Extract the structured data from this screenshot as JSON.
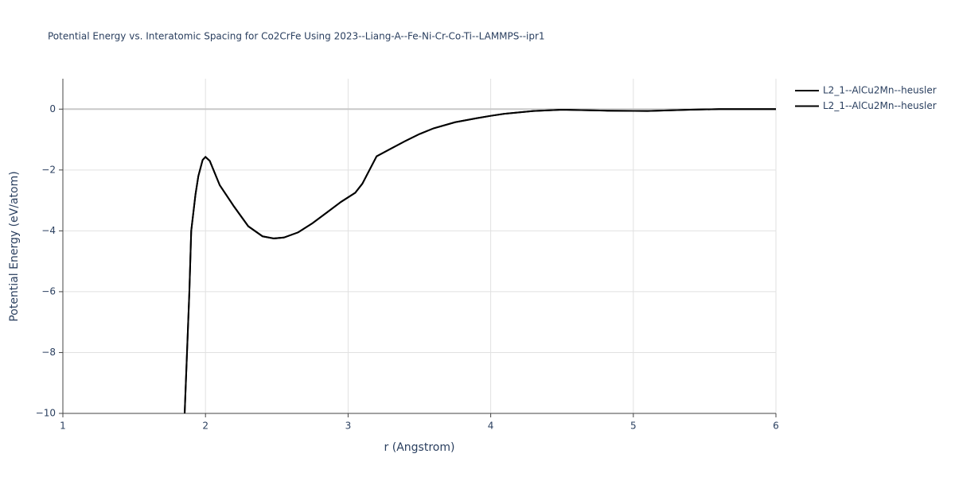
{
  "chart_data": {
    "type": "line",
    "title": "Potential Energy vs. Interatomic Spacing for Co2CrFe Using 2023--Liang-A--Fe-Ni-Cr-Co-Ti--LAMMPS--ipr1",
    "x_label": "r (Angstrom)",
    "y_label": "Potential Energy (eV/atom)",
    "x": [
      1.854,
      1.887,
      1.9,
      1.93,
      1.95,
      1.98,
      2.0,
      2.03,
      2.1,
      2.2,
      2.3,
      2.4,
      2.48,
      2.55,
      2.65,
      2.75,
      2.85,
      2.95,
      3.05,
      3.1,
      3.15,
      3.2,
      3.3,
      3.4,
      3.5,
      3.6,
      3.75,
      3.9,
      4.0,
      4.1,
      4.3,
      4.5,
      4.8,
      5.1,
      5.4,
      5.6,
      6.0
    ],
    "series": [
      {
        "name": "L2_1--AlCu2Mn--heusler",
        "color": "#000000",
        "values": [
          -10,
          -6,
          -4,
          -2.8,
          -2.2,
          -1.67,
          -1.57,
          -1.7,
          -2.5,
          -3.2,
          -3.85,
          -4.18,
          -4.25,
          -4.22,
          -4.05,
          -3.75,
          -3.4,
          -3.05,
          -2.75,
          -2.45,
          -2.0,
          -1.55,
          -1.3,
          -1.05,
          -0.82,
          -0.63,
          -0.43,
          -0.3,
          -0.22,
          -0.15,
          -0.06,
          -0.02,
          -0.05,
          -0.06,
          -0.02,
          0,
          0
        ]
      },
      {
        "name": "L2_1--AlCu2Mn--heusler",
        "color": "#000000",
        "values": [
          -10,
          -6,
          -4,
          -2.8,
          -2.2,
          -1.67,
          -1.57,
          -1.7,
          -2.5,
          -3.2,
          -3.85,
          -4.18,
          -4.25,
          -4.22,
          -4.05,
          -3.75,
          -3.4,
          -3.05,
          -2.75,
          -2.45,
          -2.0,
          -1.55,
          -1.3,
          -1.05,
          -0.82,
          -0.63,
          -0.43,
          -0.3,
          -0.22,
          -0.15,
          -0.06,
          -0.02,
          -0.05,
          -0.06,
          -0.02,
          0,
          0
        ]
      }
    ],
    "xlim": [
      1,
      6
    ],
    "ylim": [
      -10,
      1
    ],
    "xticks": [
      1,
      2,
      3,
      4,
      5,
      6
    ],
    "yticks": [
      {
        "value": -10,
        "label": "−10"
      },
      {
        "value": -8,
        "label": "−8"
      },
      {
        "value": -6,
        "label": "−6"
      },
      {
        "value": -4,
        "label": "−4"
      },
      {
        "value": -2,
        "label": "−2"
      },
      0
    ],
    "grid": true,
    "legend": "right"
  }
}
